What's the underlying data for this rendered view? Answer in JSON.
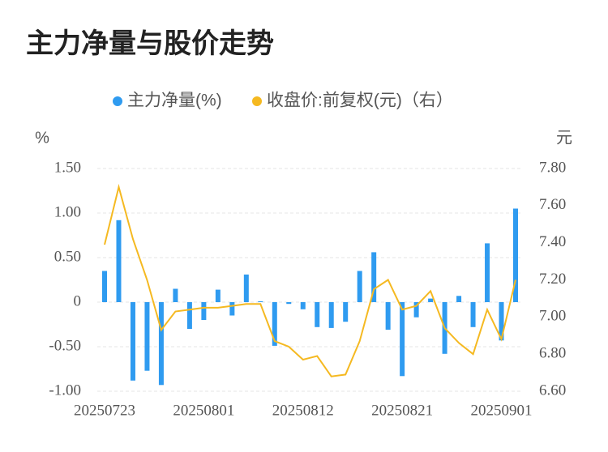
{
  "chart_data": {
    "type": "bar-line",
    "title": "主力净量与股价走势",
    "y_label": "%",
    "y2_label": "元",
    "categories": [
      "20250723",
      null,
      null,
      null,
      null,
      null,
      null,
      "20250801",
      null,
      null,
      null,
      null,
      null,
      null,
      "20250812",
      null,
      null,
      null,
      null,
      null,
      null,
      "20250821",
      null,
      null,
      null,
      null,
      null,
      null,
      "20250901",
      null
    ],
    "series": [
      {
        "name": "主力净量(%)",
        "type": "bar",
        "color": "#2f9bf0",
        "values": [
          0.35,
          0.92,
          -0.88,
          -0.77,
          -0.93,
          0.15,
          -0.3,
          -0.2,
          0.14,
          -0.15,
          0.31,
          0.01,
          -0.49,
          -0.02,
          -0.08,
          -0.28,
          -0.29,
          -0.22,
          0.35,
          0.56,
          -0.31,
          -0.83,
          -0.17,
          0.04,
          -0.58,
          0.07,
          -0.28,
          0.66,
          -0.43,
          1.05
        ]
      },
      {
        "name": "收盘价:前复权(元)（右）",
        "type": "line",
        "axis": "y2",
        "color": "#f5b921",
        "values": [
          7.39,
          7.7,
          7.42,
          7.2,
          6.93,
          7.03,
          7.04,
          7.05,
          7.05,
          7.06,
          7.07,
          7.07,
          6.87,
          6.84,
          6.77,
          6.79,
          6.68,
          6.69,
          6.87,
          7.15,
          7.2,
          7.04,
          7.06,
          7.14,
          6.94,
          6.86,
          6.8,
          7.04,
          6.88,
          7.2
        ]
      }
    ],
    "ylim": [
      -1,
      1.5
    ],
    "yticks": [
      {
        "value": -1,
        "label": "-1.00"
      },
      {
        "value": -0.5,
        "label": "-0.50"
      },
      0,
      {
        "value": 0.5,
        "label": "0.50"
      },
      {
        "value": 1,
        "label": "1.00"
      },
      {
        "value": 1.5,
        "label": "1.50"
      }
    ],
    "y2lim": [
      6.6,
      7.8
    ],
    "y2ticks": [
      {
        "value": 6.6,
        "label": "6.60"
      },
      {
        "value": 6.8,
        "label": "6.80"
      },
      {
        "value": 7.0,
        "label": "7.00"
      },
      {
        "value": 7.2,
        "label": "7.20"
      },
      {
        "value": 7.4,
        "label": "7.40"
      },
      {
        "value": 7.6,
        "label": "7.60"
      },
      {
        "value": 7.8,
        "label": "7.80"
      }
    ],
    "grid": true
  }
}
